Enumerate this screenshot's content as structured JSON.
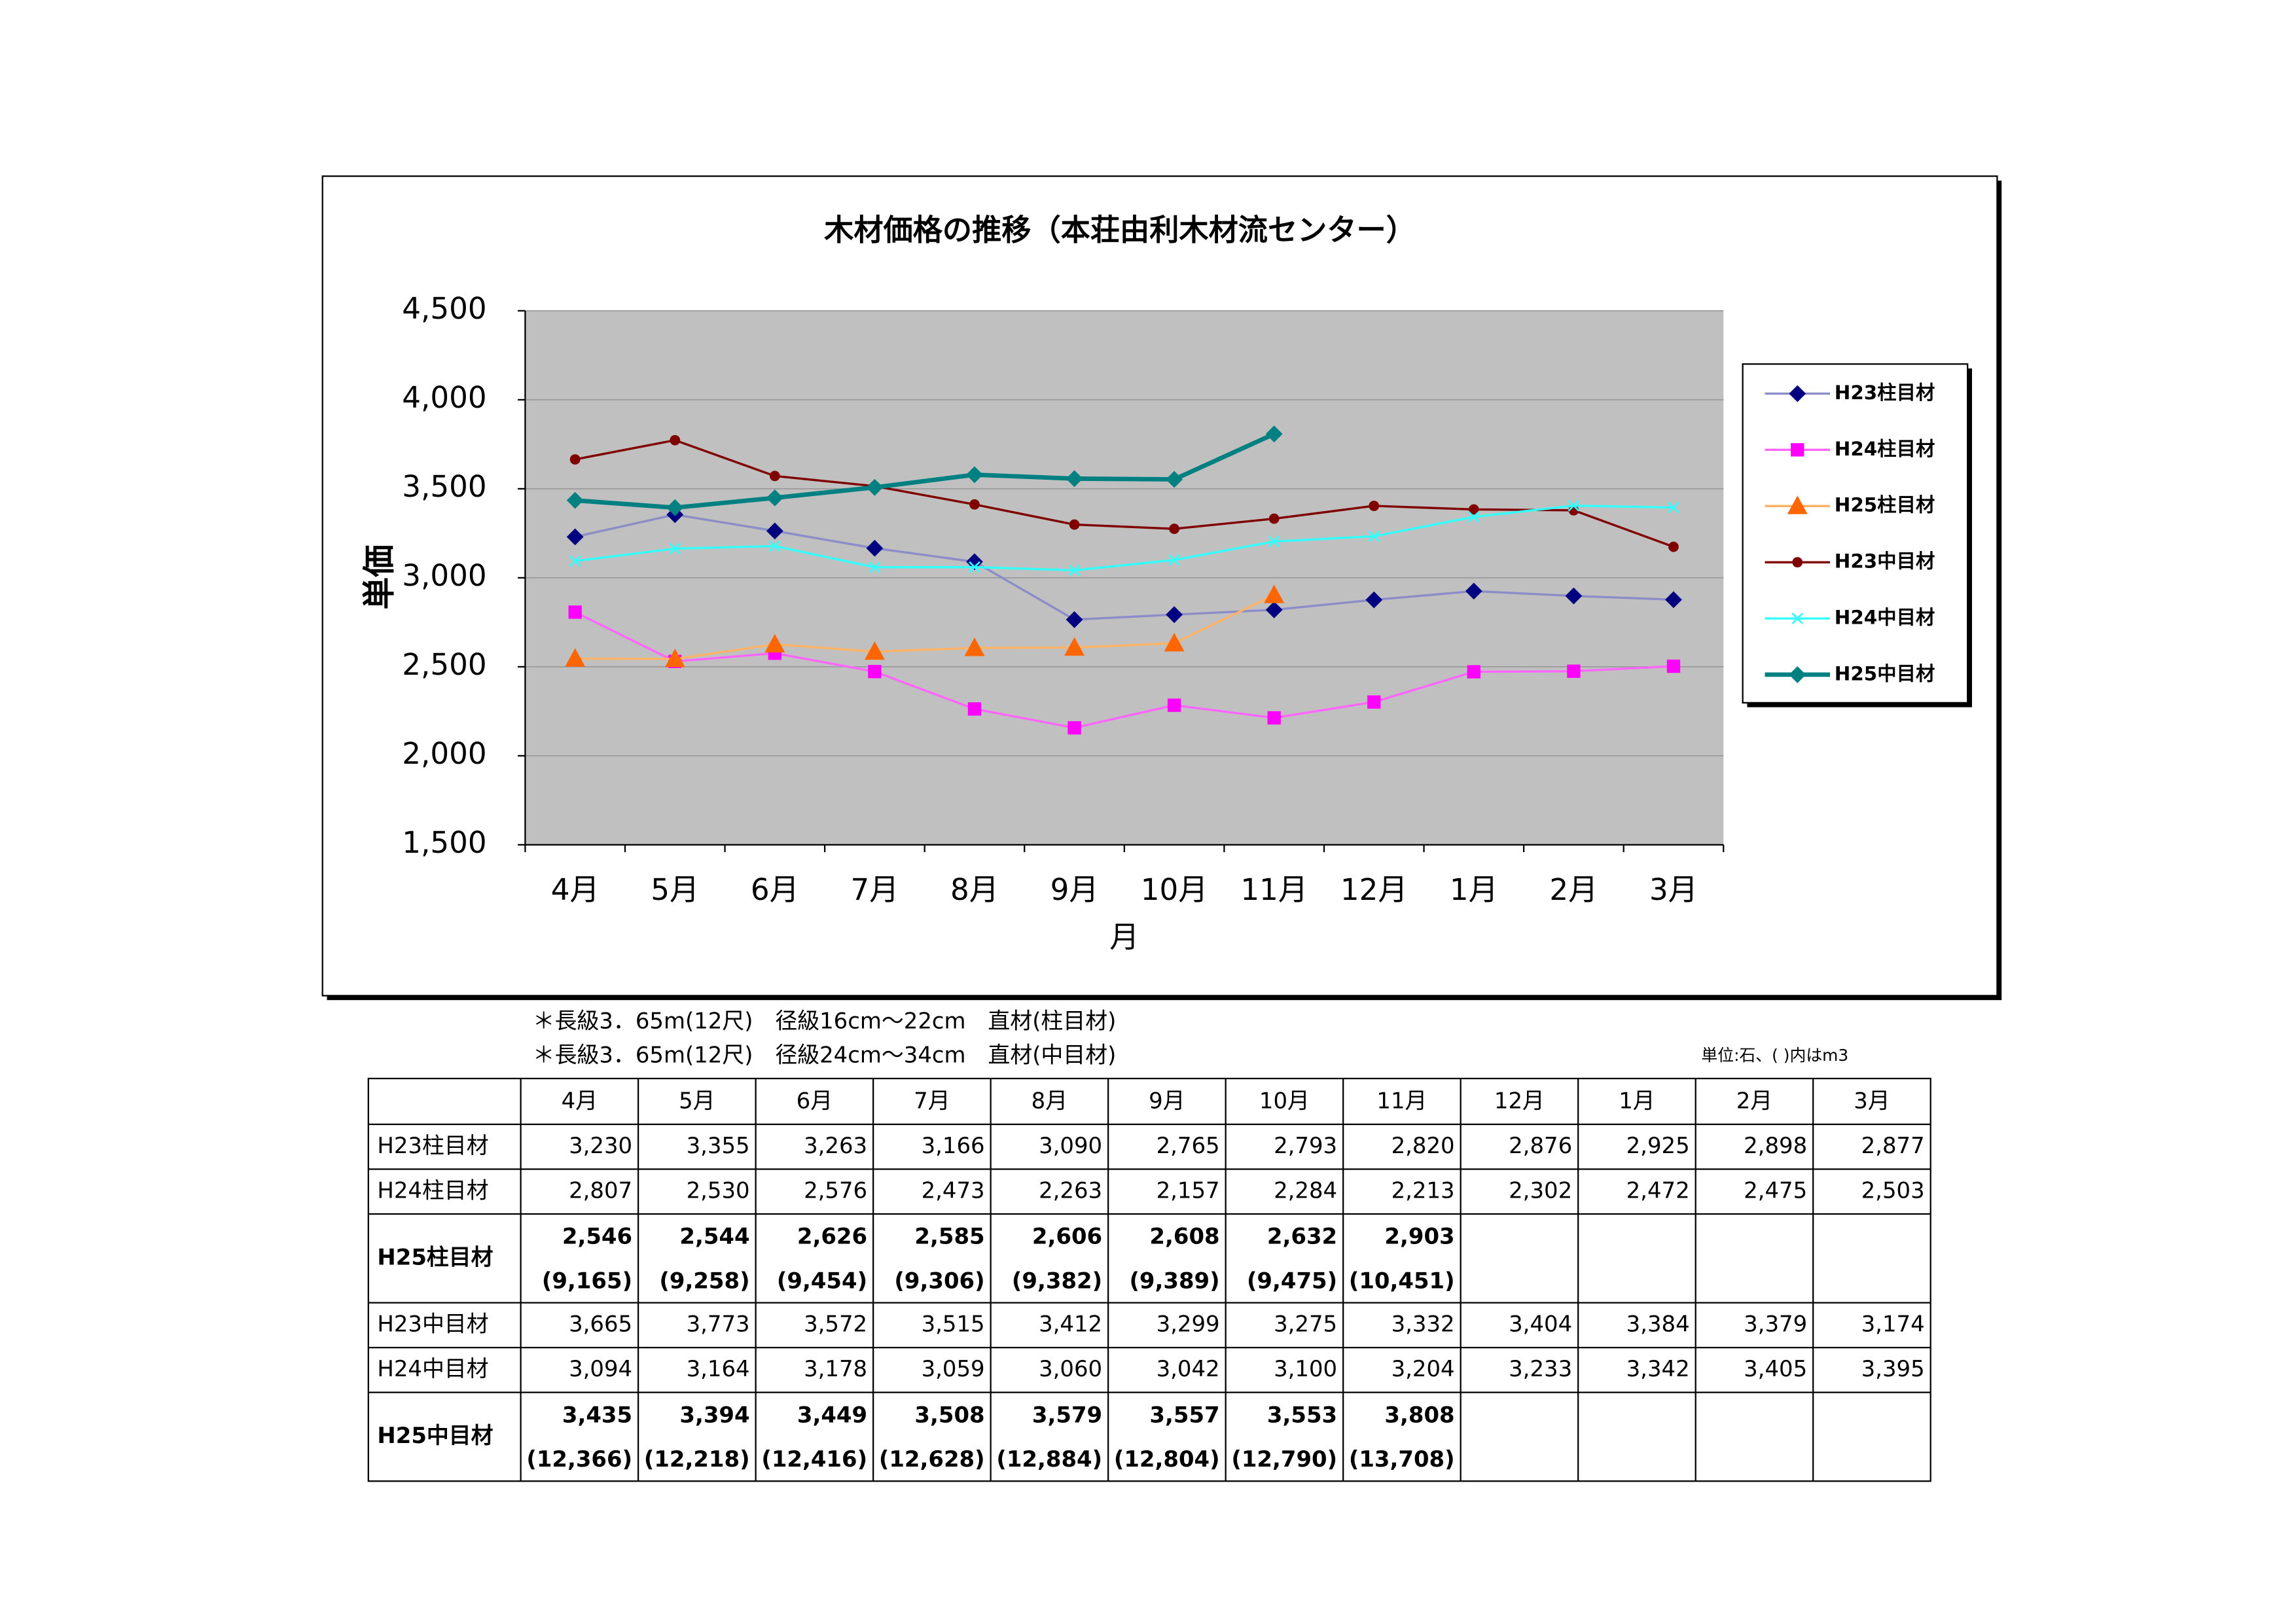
{
  "chart_data": {
    "type": "line",
    "title": "木材価格の推移（本荘由利木材流センター）",
    "y_label": "単価",
    "x_label": "月",
    "categories": [
      "4月",
      "5月",
      "6月",
      "7月",
      "8月",
      "9月",
      "10月",
      "11月",
      "12月",
      "1月",
      "2月",
      "3月"
    ],
    "ylim": [
      1500,
      4500
    ],
    "yticks": [
      {
        "value": 1500,
        "label": "1,500"
      },
      {
        "value": 2000,
        "label": "2,000"
      },
      {
        "value": 2500,
        "label": "2,500"
      },
      {
        "value": 3000,
        "label": "3,000"
      },
      {
        "value": 3500,
        "label": "3,500"
      },
      {
        "value": 4000,
        "label": "4,000"
      },
      {
        "value": 4500,
        "label": "4,500"
      }
    ],
    "grid": true,
    "legend": "right",
    "series": [
      {
        "name": "H23柱目材",
        "color": "#8c8cc8",
        "marker_color": "#000080",
        "marker": "diamond",
        "values": [
          3230,
          3355,
          3263,
          3166,
          3090,
          2765,
          2793,
          2820,
          2876,
          2925,
          2898,
          2877
        ]
      },
      {
        "name": "H24柱目材",
        "color": "#ff66ff",
        "marker_color": "#ff00ff",
        "marker": "square",
        "values": [
          2807,
          2530,
          2576,
          2473,
          2263,
          2157,
          2284,
          2213,
          2302,
          2472,
          2475,
          2503
        ]
      },
      {
        "name": "H25柱目材",
        "color": "#ffb366",
        "marker_color": "#ff6600",
        "marker": "triangle",
        "values": [
          2546,
          2544,
          2626,
          2585,
          2606,
          2608,
          2632,
          2903,
          null,
          null,
          null,
          null
        ]
      },
      {
        "name": "H23中目材",
        "color": "#800000",
        "marker_color": "#800000",
        "marker": "circle",
        "values": [
          3665,
          3773,
          3572,
          3515,
          3412,
          3299,
          3275,
          3332,
          3404,
          3384,
          3379,
          3174
        ]
      },
      {
        "name": "H24中目材",
        "color": "#33ffff",
        "marker_color": "#33ffff",
        "marker": "x",
        "values": [
          3094,
          3164,
          3178,
          3059,
          3060,
          3042,
          3100,
          3204,
          3233,
          3342,
          3405,
          3395
        ]
      },
      {
        "name": "H25中目材",
        "color": "#008080",
        "marker_color": "#008080",
        "marker": "diamond",
        "width": 3,
        "values": [
          3435,
          3394,
          3449,
          3508,
          3579,
          3557,
          3553,
          3808,
          null,
          null,
          null,
          null
        ]
      }
    ]
  },
  "notes": [
    "＊長級3．65m(12尺)　径級16cm～22cm　直材(柱目材)",
    "＊長級3．65m(12尺)　径級24cm～34cm　直材(中目材)"
  ],
  "unit_note": "単位:石、( )内はm3",
  "table": {
    "columns": [
      "4月",
      "5月",
      "6月",
      "7月",
      "8月",
      "9月",
      "10月",
      "11月",
      "12月",
      "1月",
      "2月",
      "3月"
    ],
    "rows": [
      {
        "label": "H23柱目材",
        "values": [
          "3,230",
          "3,355",
          "3,263",
          "3,166",
          "3,090",
          "2,765",
          "2,793",
          "2,820",
          "2,876",
          "2,925",
          "2,898",
          "2,877"
        ]
      },
      {
        "label": "H24柱目材",
        "values": [
          "2,807",
          "2,530",
          "2,576",
          "2,473",
          "2,263",
          "2,157",
          "2,284",
          "2,213",
          "2,302",
          "2,472",
          "2,475",
          "2,503"
        ]
      },
      {
        "label": "H25柱目材",
        "bold": true,
        "values": [
          "2,546",
          "2,544",
          "2,626",
          "2,585",
          "2,606",
          "2,608",
          "2,632",
          "2,903"
        ],
        "sub_values": [
          "(9,165)",
          "(9,258)",
          "(9,454)",
          "(9,306)",
          "(9,382)",
          "(9,389)",
          "(9,475)",
          "(10,451)"
        ]
      },
      {
        "label": "H23中目材",
        "values": [
          "3,665",
          "3,773",
          "3,572",
          "3,515",
          "3,412",
          "3,299",
          "3,275",
          "3,332",
          "3,404",
          "3,384",
          "3,379",
          "3,174"
        ]
      },
      {
        "label": "H24中目材",
        "values": [
          "3,094",
          "3,164",
          "3,178",
          "3,059",
          "3,060",
          "3,042",
          "3,100",
          "3,204",
          "3,233",
          "3,342",
          "3,405",
          "3,395"
        ]
      },
      {
        "label": "H25中目材",
        "bold": true,
        "values": [
          "3,435",
          "3,394",
          "3,449",
          "3,508",
          "3,579",
          "3,557",
          "3,553",
          "3,808"
        ],
        "sub_values": [
          "(12,366)",
          "(12,218)",
          "(12,416)",
          "(12,628)",
          "(12,884)",
          "(12,804)",
          "(12,790)",
          "(13,708)"
        ]
      }
    ]
  }
}
